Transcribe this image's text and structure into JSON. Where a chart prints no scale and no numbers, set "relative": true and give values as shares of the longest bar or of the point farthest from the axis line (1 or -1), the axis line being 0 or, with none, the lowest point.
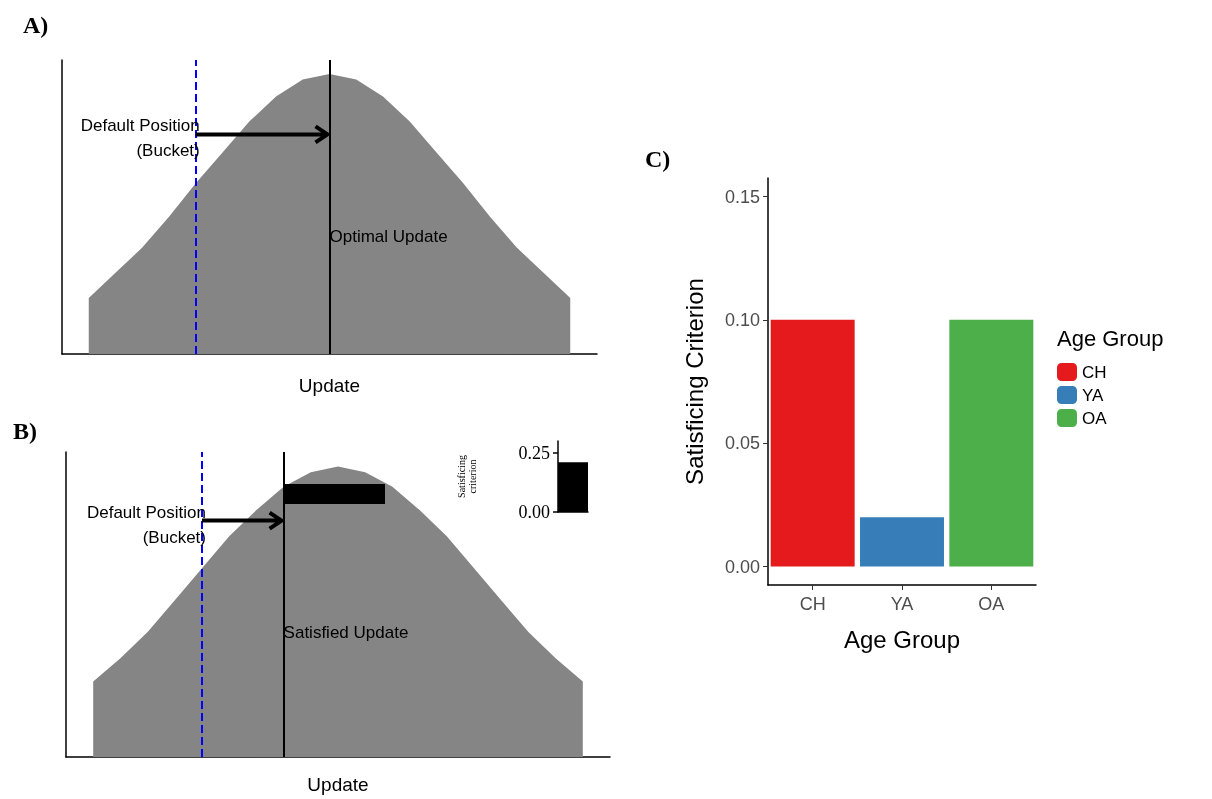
{
  "chart_data": [
    {
      "type": "area",
      "title": "A)",
      "xlabel": "Update",
      "relative": true,
      "tick_labels": false,
      "grid": false,
      "categories": [
        null,
        null,
        null,
        null,
        null,
        null,
        null,
        null,
        null,
        null,
        null,
        null,
        null,
        null,
        null,
        null,
        null,
        null,
        null,
        null,
        null
      ],
      "series": [
        {
          "color": "#858585",
          "values": [
            null,
            0.2,
            0.29,
            0.38,
            0.49,
            0.61,
            0.72,
            0.83,
            0.92,
            0.98,
            1,
            0.98,
            0.92,
            0.83,
            0.72,
            0.61,
            0.49,
            0.38,
            0.29,
            0.2,
            null
          ]
        }
      ],
      "annotations": [
        "Default Position\n(Bucket)",
        "Optimal Update"
      ]
    },
    {
      "type": "area",
      "title": "B)",
      "xlabel": "Update",
      "relative": true,
      "tick_labels": false,
      "grid": false,
      "categories": [
        null,
        null,
        null,
        null,
        null,
        null,
        null,
        null,
        null,
        null,
        null,
        null,
        null,
        null,
        null,
        null,
        null,
        null,
        null,
        null,
        null
      ],
      "series": [
        {
          "color": "#858585",
          "values": [
            null,
            0.26,
            0.34,
            0.43,
            0.54,
            0.65,
            0.76,
            0.85,
            0.93,
            0.98,
            1,
            0.98,
            0.93,
            0.85,
            0.76,
            0.65,
            0.54,
            0.43,
            0.34,
            0.26,
            null
          ]
        }
      ],
      "annotations": [
        "Default Position\n(Bucket)",
        "Satisfied Update"
      ]
    },
    {
      "type": "bar",
      "ylabel": "Satisficing\ncriterion",
      "categories": [
        null
      ],
      "values": [
        0.21
      ],
      "color": "#000000",
      "ylim": [
        0,
        0.3
      ],
      "yticks": [
        {
          "value": 0,
          "label": "0.00"
        },
        {
          "value": 0.25,
          "label": "0.25"
        }
      ],
      "tick_labels": "y",
      "grid": false
    },
    {
      "type": "bar",
      "title": "C)",
      "xlabel": "Age Group",
      "ylabel": "Satisficing Criterion",
      "legend_title": "Age Group",
      "legend": "right",
      "grid": false,
      "stacked": true,
      "categories": [
        "CH",
        "YA",
        "OA"
      ],
      "series": [
        {
          "name": "CH",
          "color": "#e41a1c",
          "values": [
            0.1,
            null,
            null
          ]
        },
        {
          "name": "YA",
          "color": "#377eb8",
          "values": [
            null,
            0.02,
            null
          ]
        },
        {
          "name": "OA",
          "color": "#4daf4a",
          "values": [
            null,
            null,
            0.1
          ]
        }
      ],
      "ylim": [
        -0.0075,
        0.1575
      ],
      "yticks": [
        {
          "value": 0,
          "label": "0.00"
        },
        {
          "value": 0.05,
          "label": "0.05"
        },
        {
          "value": 0.1,
          "label": "0.10"
        },
        {
          "value": 0.15,
          "label": "0.15"
        }
      ]
    }
  ]
}
